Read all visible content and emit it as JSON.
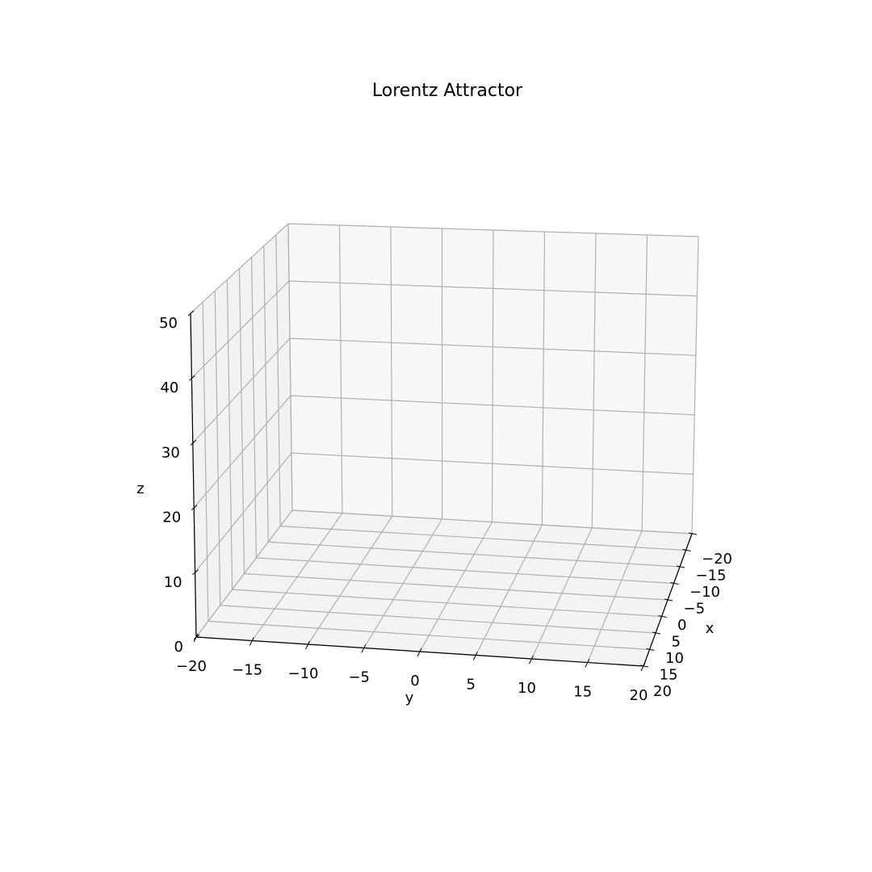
{
  "chart_data": {
    "type": "line3d",
    "title": "Lorentz Attractor",
    "xlabel": "x",
    "ylabel": "y",
    "zlabel": "z",
    "xlim": [
      -20,
      20
    ],
    "ylim": [
      -20,
      20
    ],
    "zlim": [
      0,
      50
    ],
    "x_ticks": [
      "−20",
      "−15",
      "−10",
      "−5",
      "0",
      "5",
      "10",
      "15",
      "20"
    ],
    "y_ticks": [
      "−20",
      "−15",
      "−10",
      "−5",
      "0",
      "5",
      "10",
      "15",
      "20"
    ],
    "z_ticks": [
      "0",
      "10",
      "20",
      "30",
      "40",
      "50"
    ],
    "grid": true,
    "series": []
  },
  "colors": {
    "pane_back": "#f7f7f7",
    "pane_side": "#f2f2f2",
    "pane_floor": "#f3f3f3",
    "grid": "#b0b0b0",
    "axis": "#000000"
  }
}
